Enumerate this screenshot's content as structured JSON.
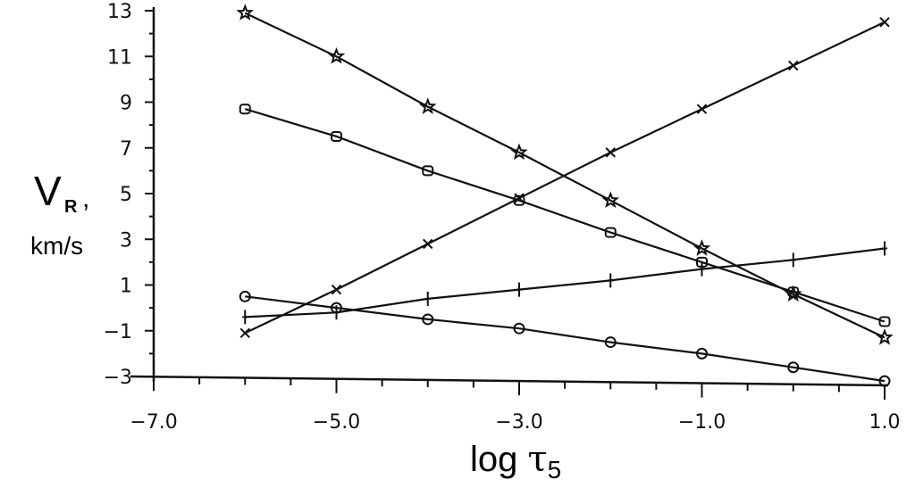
{
  "chart_data": {
    "type": "line",
    "ylabel_main": "V",
    "ylabel_sub": "R",
    "ylabel_sep": ",",
    "ylabel_units": "km/s",
    "xlabel_prefix": "log ",
    "xlabel_symbol": "τ",
    "xlabel_subscript": "5",
    "xlim": [
      -7.0,
      1.0
    ],
    "ylim": [
      -3,
      13
    ],
    "x_tick_values": [
      -7.0,
      -5.0,
      -3.0,
      -1.0,
      1.0
    ],
    "x_tick_labels": [
      "−7.0",
      "−5.0",
      "−3.0",
      "−1.0",
      "1.0"
    ],
    "y_tick_values": [
      -3,
      -1,
      1,
      3,
      5,
      7,
      9,
      11,
      13
    ],
    "y_tick_labels": [
      "−3",
      "−1",
      "1",
      "3",
      "5",
      "7",
      "9",
      "11",
      "13"
    ],
    "grid": false,
    "series": [
      {
        "marker": "star",
        "x": [
          -6,
          -5,
          -4,
          -3,
          -2,
          -1,
          0,
          1
        ],
        "y": [
          12.9,
          11.0,
          8.8,
          6.8,
          4.7,
          2.6,
          0.6,
          -1.3
        ]
      },
      {
        "marker": "square",
        "x": [
          -6,
          -5,
          -4,
          -3,
          -2,
          -1,
          0,
          1
        ],
        "y": [
          8.7,
          7.5,
          6.0,
          4.7,
          3.3,
          2.0,
          0.7,
          -0.6
        ]
      },
      {
        "marker": "x",
        "x": [
          -6,
          -5,
          -4,
          -3,
          -2,
          -1,
          0,
          1
        ],
        "y": [
          -1.1,
          0.8,
          2.8,
          4.8,
          6.8,
          8.7,
          10.6,
          12.5
        ]
      },
      {
        "marker": "plus",
        "x": [
          -6,
          -5,
          -4,
          -3,
          -2,
          -1,
          0,
          1
        ],
        "y": [
          -0.4,
          -0.2,
          0.4,
          0.8,
          1.2,
          1.7,
          2.1,
          2.6
        ]
      },
      {
        "marker": "circle",
        "x": [
          -6,
          -5,
          -4,
          -3,
          -2,
          -1,
          0,
          1
        ],
        "y": [
          0.5,
          0.0,
          -0.5,
          -0.9,
          -1.5,
          -2.0,
          -2.6,
          -3.2
        ]
      }
    ]
  }
}
